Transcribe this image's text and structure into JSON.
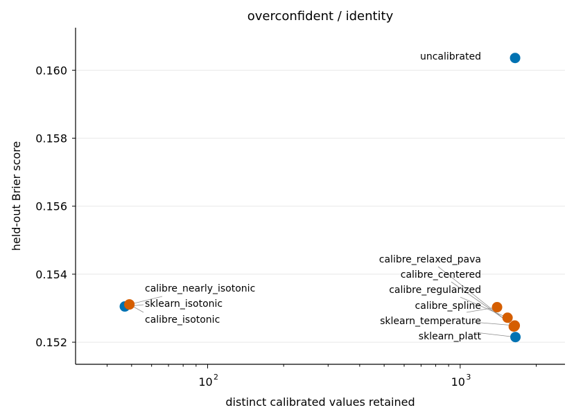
{
  "chart_data": {
    "type": "scatter",
    "title": "overconfident / identity",
    "xlabel": "distinct calibrated values retained",
    "ylabel": "held-out Brier score",
    "xscale": "log",
    "xlim": [
      30,
      2600
    ],
    "ylim": [
      0.15135,
      0.16125
    ],
    "grid": "y-major",
    "x_major_ticks": [
      {
        "value": 100,
        "base": "10",
        "exp": "2"
      },
      {
        "value": 1000,
        "base": "10",
        "exp": "3"
      }
    ],
    "x_minor_ticks": [
      40,
      50,
      60,
      70,
      80,
      90,
      200,
      300,
      400,
      500,
      600,
      700,
      800,
      900,
      2000
    ],
    "y_ticks": [
      {
        "value": 0.152,
        "label": "0.152"
      },
      {
        "value": 0.154,
        "label": "0.154"
      },
      {
        "value": 0.156,
        "label": "0.156"
      },
      {
        "value": 0.158,
        "label": "0.158"
      },
      {
        "value": 0.16,
        "label": "0.160"
      }
    ],
    "colors": {
      "blue": "#0072b2",
      "orange": "#d55e00"
    },
    "points": [
      {
        "name": "uncalibrated",
        "x": 1650,
        "y": 0.16036,
        "color": "blue"
      },
      {
        "name": "calibre_nearly_isotonic",
        "x": 49,
        "y": 0.15311,
        "color": "orange"
      },
      {
        "name": "sklearn_isotonic",
        "x": 47,
        "y": 0.15305,
        "color": "blue"
      },
      {
        "name": "calibre_isotonic",
        "x": 49,
        "y": 0.15311,
        "color": "orange"
      },
      {
        "name": "calibre_relaxed_pava",
        "x": 1630,
        "y": 0.15246,
        "color": "orange"
      },
      {
        "name": "calibre_centered",
        "x": 1640,
        "y": 0.15247,
        "color": "orange"
      },
      {
        "name": "calibre_regularized",
        "x": 1540,
        "y": 0.15272,
        "color": "orange"
      },
      {
        "name": "calibre_spline",
        "x": 1400,
        "y": 0.15303,
        "color": "orange"
      },
      {
        "name": "sklearn_temperature",
        "x": 1645,
        "y": 0.15249,
        "color": "orange"
      },
      {
        "name": "sklearn_platt",
        "x": 1655,
        "y": 0.15215,
        "color": "blue"
      }
    ]
  }
}
